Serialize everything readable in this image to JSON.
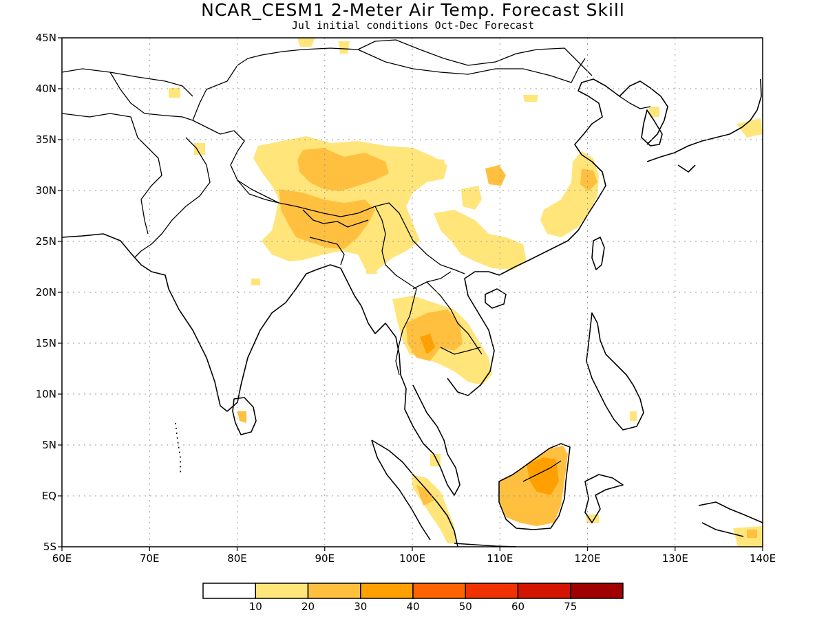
{
  "title": "NCAR_CESM1 2-Meter Air Temp. Forecast Skill",
  "subtitle": "Jul initial conditions  Oct-Dec Forecast",
  "map": {
    "lon_range": [
      60,
      140
    ],
    "lat_range": [
      -5,
      45
    ],
    "lon_ticks": [
      "60E",
      "70E",
      "80E",
      "90E",
      "100E",
      "110E",
      "120E",
      "130E",
      "140E"
    ],
    "lat_ticks": [
      "45N",
      "40N",
      "35N",
      "30N",
      "25N",
      "20N",
      "15N",
      "10N",
      "5N",
      "EQ",
      "5S"
    ],
    "gridlines": true,
    "regions": [
      {
        "name": "tibetan-plateau",
        "level": "10-20"
      },
      {
        "name": "tibetan-plateau-core",
        "level": "20-30"
      },
      {
        "name": "indochina",
        "level": "10-20"
      },
      {
        "name": "indochina-core",
        "level": "20-30"
      },
      {
        "name": "east-china",
        "level": "10-20"
      },
      {
        "name": "borneo",
        "level": "20-30"
      },
      {
        "name": "sumatra",
        "level": "10-20"
      }
    ]
  },
  "colorbar": {
    "labels": [
      "10",
      "20",
      "30",
      "40",
      "50",
      "60",
      "75"
    ],
    "colors": [
      "#ffffff",
      "#ffe57a",
      "#ffc040",
      "#ffa000",
      "#ff6400",
      "#f03200",
      "#d21400",
      "#a00000"
    ]
  }
}
